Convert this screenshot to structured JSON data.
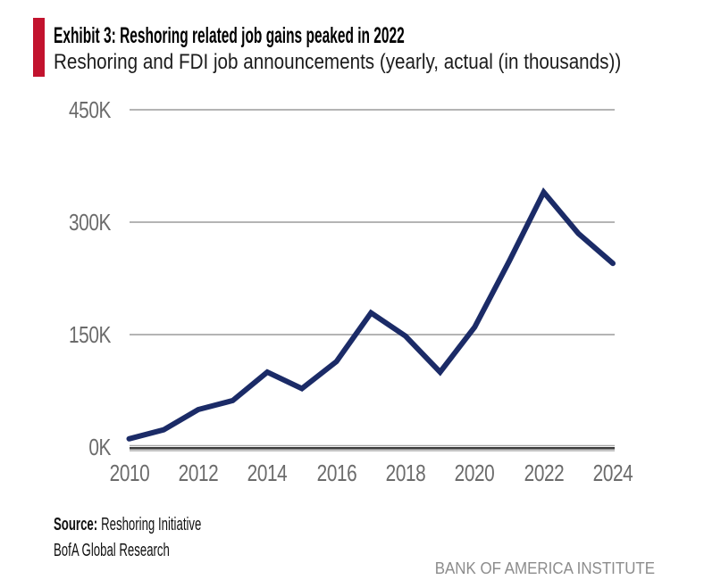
{
  "colors": {
    "accent_red": "#C2132E",
    "line_navy": "#1B2B67",
    "gridline_gray": "#B4B4B4",
    "axis_dark": "#3E3E3E",
    "tick_gray": "#6B6B6B",
    "institute_gray": "#8C8C8C"
  },
  "header": {
    "exhibit_title": "Exhibit 3: Reshoring related job gains peaked in 2022",
    "subtitle": "Reshoring and FDI job announcements (yearly, actual (in thousands))"
  },
  "chart_data": {
    "type": "line",
    "title": "Exhibit 3: Reshoring related job gains peaked in 2022",
    "subtitle": "Reshoring and FDI job announcements (yearly, actual (in thousands))",
    "series_name": "Reshoring and FDI job announcements (thousands)",
    "x": [
      2010,
      2011,
      2012,
      2013,
      2014,
      2015,
      2016,
      2017,
      2018,
      2019,
      2020,
      2021,
      2022,
      2023,
      2024
    ],
    "values": [
      11,
      23,
      50,
      62,
      100,
      78,
      114,
      179,
      148,
      100,
      160,
      248,
      340,
      285,
      245
    ],
    "unit": "thousands of jobs",
    "xlabel": "",
    "ylabel": "",
    "ylim": [
      0,
      450
    ],
    "yticks": [
      "0K",
      "150K",
      "300K",
      "450K"
    ],
    "ytick_values": [
      0,
      150,
      300,
      450
    ],
    "xticks": [
      "2010",
      "2012",
      "2014",
      "2016",
      "2018",
      "2020",
      "2022",
      "2024"
    ],
    "xtick_values": [
      2010,
      2012,
      2014,
      2016,
      2018,
      2020,
      2022,
      2024
    ],
    "grid": "horizontal",
    "legend": "none",
    "line_color": "#1B2B67",
    "gridline_color": "#B4B4B4"
  },
  "footer": {
    "source_label": "Source:",
    "source_text": "Reshoring Initiative",
    "source_line2": "BofA Global Research",
    "institute": "BANK OF AMERICA INSTITUTE"
  }
}
